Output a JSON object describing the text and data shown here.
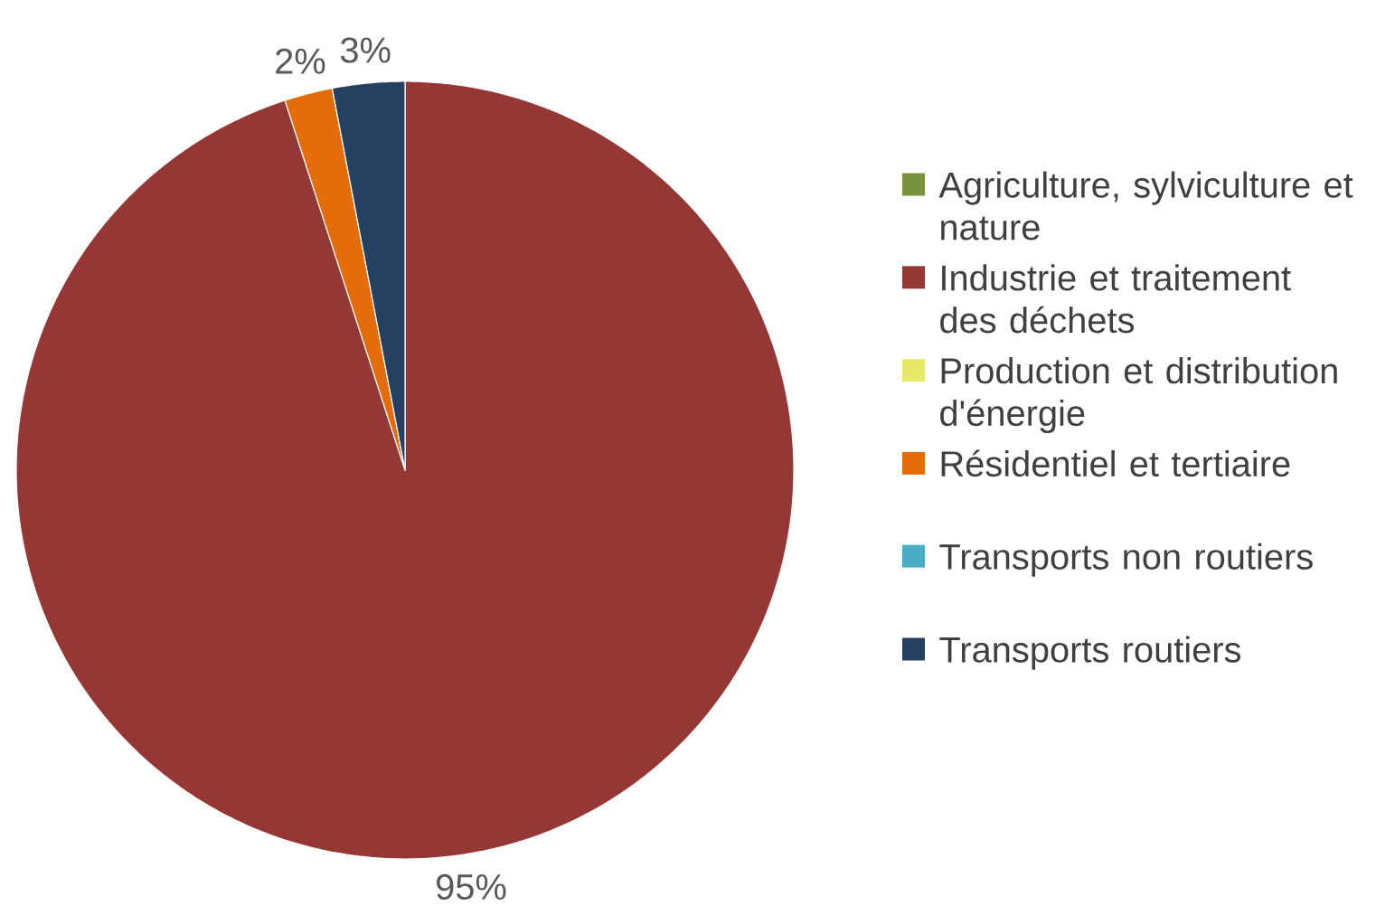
{
  "chart_data": {
    "type": "pie",
    "categories": [
      "Agriculture, sylviculture et nature",
      "Industrie et traitement des déchets",
      "Production et distribution d'énergie",
      "Résidentiel et tertiaire",
      "Transports non routiers",
      "Transports routiers"
    ],
    "values": [
      0,
      95,
      0,
      2,
      0,
      3
    ],
    "colors": [
      "#77933c",
      "#953735",
      "#e8e86a",
      "#e46c0a",
      "#4bacc6",
      "#254061"
    ],
    "value_labels": [
      null,
      "95%",
      null,
      "2%",
      null,
      "3%"
    ],
    "legend": "right"
  }
}
